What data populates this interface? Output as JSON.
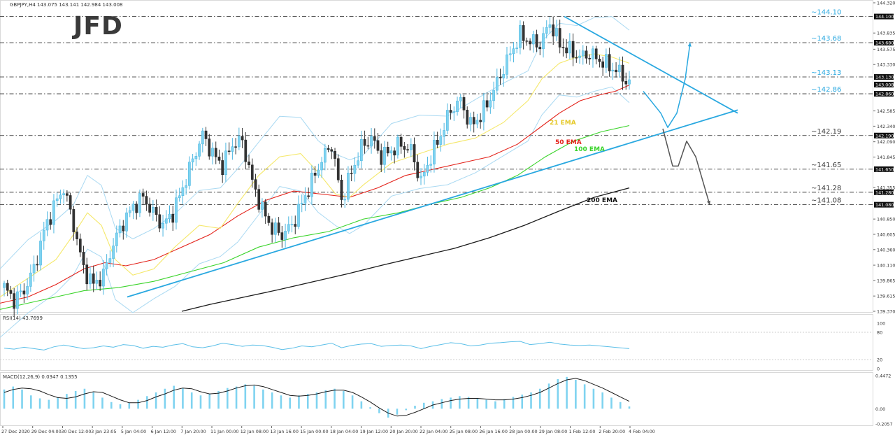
{
  "header": {
    "symbol_line": "GBPJPY,H4  143.075 143.141 142.984 143.008",
    "logo": "JFD"
  },
  "colors": {
    "bullish": "#7fd3f0",
    "bearish": "#333333",
    "bollinger": "#a9d9f2",
    "ema21": "#f5e86a",
    "ema50": "#e32119",
    "ema100": "#3bd42b",
    "ema200": "#1a1a1a",
    "trendline": "#29a8e0",
    "scenario_up": "#29a8e0",
    "scenario_down": "#555555",
    "rsi_line": "#5bbfe8",
    "macd_hist": "#7fd3f0",
    "macd_signal": "#1a1a1a"
  },
  "price_axis": {
    "ticks": [
      "144.320",
      "144.100",
      "143.835",
      "143.680",
      "143.575",
      "143.330",
      "143.130",
      "143.008",
      "142.860",
      "142.585",
      "142.340",
      "142.190",
      "142.090",
      "141.845",
      "141.650",
      "141.355",
      "141.280",
      "141.080",
      "140.850",
      "140.605",
      "140.360",
      "140.110",
      "139.865",
      "139.615",
      "139.370"
    ],
    "highlighted": [
      "144.100",
      "143.680",
      "143.130",
      "143.008",
      "142.860",
      "142.190",
      "141.650",
      "141.280",
      "141.080"
    ]
  },
  "time_axis": {
    "ticks": [
      "27 Dec 2020",
      "29 Dec 04:00",
      "30 Dec 12:00",
      "3 Jan 23:05",
      "5 Jan 04:00",
      "6 Jan 12:00",
      "7 Jan 20:00",
      "11 Jan 00:00",
      "12 Jan 08:00",
      "13 Jan 16:00",
      "15 Jan 00:00",
      "18 Jan 04:00",
      "19 Jan 12:00",
      "20 Jan 20:00",
      "22 Jan 04:00",
      "25 Jan 08:00",
      "26 Jan 16:00",
      "28 Jan 00:00",
      "29 Jan 08:00",
      "1 Feb 12:00",
      "2 Feb 20:00",
      "4 Feb 04:00"
    ]
  },
  "levels": [
    {
      "label": "~144.10",
      "value": 144.1
    },
    {
      "label": "~143.68",
      "value": 143.68
    },
    {
      "label": "~143.13",
      "value": 143.13
    },
    {
      "label": "~142.86",
      "value": 142.86
    },
    {
      "label": "~142.19",
      "value": 142.19
    },
    {
      "label": "~141.65",
      "value": 141.65
    },
    {
      "label": "~141.28",
      "value": 141.28
    },
    {
      "label": "~141.08",
      "value": 141.08
    }
  ],
  "ema_labels": [
    {
      "label": "21 EMA",
      "key": "ema21"
    },
    {
      "label": "50 EMA",
      "key": "ema50"
    },
    {
      "label": "100 EMA",
      "key": "ema100"
    },
    {
      "label": "200 EMA",
      "key": "ema200"
    }
  ],
  "rsi": {
    "label": "RSI(14) 43.7699",
    "ticks": [
      "100",
      "80",
      "20",
      "0"
    ]
  },
  "macd": {
    "label": "MACD(12,26,9) 0.0347 0.1355",
    "ticks": [
      "0.4472",
      "0.00",
      "-0.2057"
    ]
  },
  "chart_data": {
    "type": "candlestick",
    "symbol": "GBPJPY",
    "timeframe": "H4",
    "ylim": [
      139.37,
      144.32
    ],
    "x_labels": [
      "27 Dec 2020",
      "29 Dec 04:00",
      "30 Dec 12:00",
      "3 Jan 23:05",
      "5 Jan 04:00",
      "6 Jan 12:00",
      "7 Jan 20:00",
      "11 Jan 00:00",
      "12 Jan 08:00",
      "13 Jan 16:00",
      "15 Jan 00:00",
      "18 Jan 04:00",
      "19 Jan 12:00",
      "20 Jan 20:00",
      "22 Jan 04:00",
      "25 Jan 08:00",
      "26 Jan 16:00",
      "28 Jan 00:00",
      "29 Jan 08:00",
      "1 Feb 12:00",
      "2 Feb 20:00",
      "4 Feb 04:00"
    ],
    "close_path": [
      139.75,
      139.55,
      139.7,
      140.05,
      140.65,
      141.05,
      141.35,
      140.75,
      140.05,
      139.8,
      139.95,
      140.45,
      140.8,
      141.05,
      141.2,
      140.95,
      140.75,
      140.95,
      141.35,
      141.8,
      142.2,
      141.9,
      141.7,
      142.05,
      142.1,
      141.45,
      141.0,
      140.7,
      140.6,
      140.75,
      141.1,
      141.45,
      141.8,
      142.05,
      141.15,
      141.6,
      142.0,
      142.15,
      141.85,
      141.95,
      142.05,
      141.95,
      141.45,
      141.85,
      142.2,
      142.6,
      142.75,
      142.35,
      142.5,
      142.8,
      143.15,
      143.5,
      143.8,
      143.7,
      143.65,
      144.0,
      143.65,
      143.55,
      143.45,
      143.5,
      143.4,
      143.3,
      143.2,
      143.01
    ],
    "ema21": [
      [
        0,
        139.6
      ],
      [
        40,
        139.9
      ],
      [
        80,
        140.2
      ],
      [
        105,
        140.6
      ],
      [
        125,
        140.95
      ],
      [
        145,
        140.75
      ],
      [
        165,
        140.2
      ],
      [
        190,
        139.95
      ],
      [
        220,
        140.05
      ],
      [
        250,
        140.4
      ],
      [
        285,
        140.75
      ],
      [
        315,
        140.7
      ],
      [
        340,
        141.1
      ],
      [
        370,
        141.55
      ],
      [
        400,
        141.85
      ],
      [
        430,
        141.9
      ],
      [
        455,
        141.6
      ],
      [
        480,
        141.25
      ],
      [
        500,
        141.2
      ],
      [
        520,
        141.4
      ],
      [
        560,
        141.75
      ],
      [
        600,
        141.9
      ],
      [
        640,
        142.05
      ],
      [
        680,
        142.15
      ],
      [
        720,
        142.4
      ],
      [
        755,
        142.75
      ],
      [
        775,
        143.1
      ],
      [
        800,
        143.35
      ],
      [
        825,
        143.45
      ],
      [
        850,
        143.5
      ],
      [
        875,
        143.45
      ],
      [
        900,
        143.35
      ]
    ],
    "ema50": [
      [
        0,
        139.5
      ],
      [
        40,
        139.6
      ],
      [
        80,
        139.8
      ],
      [
        120,
        140.05
      ],
      [
        150,
        140.15
      ],
      [
        180,
        140.1
      ],
      [
        220,
        140.2
      ],
      [
        260,
        140.4
      ],
      [
        300,
        140.6
      ],
      [
        340,
        140.9
      ],
      [
        380,
        141.15
      ],
      [
        420,
        141.3
      ],
      [
        460,
        141.25
      ],
      [
        500,
        141.2
      ],
      [
        540,
        141.35
      ],
      [
        580,
        141.55
      ],
      [
        620,
        141.65
      ],
      [
        660,
        141.75
      ],
      [
        700,
        141.85
      ],
      [
        740,
        142.05
      ],
      [
        770,
        142.3
      ],
      [
        800,
        142.55
      ],
      [
        830,
        142.75
      ],
      [
        860,
        142.85
      ],
      [
        880,
        142.9
      ],
      [
        900,
        143.0
      ]
    ],
    "ema100": [
      [
        0,
        139.4
      ],
      [
        40,
        139.5
      ],
      [
        80,
        139.6
      ],
      [
        120,
        139.7
      ],
      [
        170,
        139.75
      ],
      [
        220,
        139.85
      ],
      [
        270,
        140.0
      ],
      [
        320,
        140.15
      ],
      [
        370,
        140.4
      ],
      [
        420,
        140.55
      ],
      [
        470,
        140.65
      ],
      [
        520,
        140.85
      ],
      [
        570,
        140.95
      ],
      [
        620,
        141.1
      ],
      [
        660,
        141.2
      ],
      [
        700,
        141.35
      ],
      [
        740,
        141.55
      ],
      [
        780,
        141.85
      ],
      [
        820,
        142.1
      ],
      [
        860,
        142.25
      ],
      [
        900,
        142.35
      ]
    ],
    "ema200": [
      [
        260,
        139.37
      ],
      [
        300,
        139.48
      ],
      [
        350,
        139.6
      ],
      [
        400,
        139.72
      ],
      [
        450,
        139.85
      ],
      [
        500,
        139.98
      ],
      [
        550,
        140.12
      ],
      [
        600,
        140.25
      ],
      [
        650,
        140.38
      ],
      [
        700,
        140.55
      ],
      [
        750,
        140.75
      ],
      [
        800,
        140.98
      ],
      [
        850,
        141.2
      ],
      [
        900,
        141.35
      ]
    ],
    "trendline_down": [
      [
        807,
        144.1
      ],
      [
        1055,
        142.55
      ]
    ],
    "trendline_up": [
      [
        182,
        139.6
      ],
      [
        1055,
        142.6
      ]
    ],
    "scenario_up": [
      [
        920,
        142.9
      ],
      [
        945,
        142.55
      ],
      [
        955,
        142.32
      ],
      [
        968,
        142.55
      ],
      [
        980,
        143.1
      ],
      [
        987,
        143.68
      ]
    ],
    "scenario_down": [
      [
        948,
        142.3
      ],
      [
        962,
        141.7
      ],
      [
        970,
        141.7
      ],
      [
        982,
        142.1
      ],
      [
        995,
        141.85
      ],
      [
        1015,
        141.08
      ]
    ],
    "rsi_range": [
      0,
      100
    ],
    "rsi_levels": [
      80,
      20
    ],
    "rsi": [
      45,
      43,
      47,
      44,
      41,
      48,
      52,
      48,
      44,
      46,
      50,
      47,
      53,
      51,
      45,
      49,
      47,
      52,
      55,
      48,
      46,
      50,
      56,
      53,
      49,
      52,
      51,
      47,
      42,
      45,
      50,
      48,
      52,
      56,
      46,
      51,
      54,
      55,
      49,
      51,
      52,
      50,
      44,
      49,
      53,
      57,
      55,
      50,
      52,
      56,
      57,
      59,
      60,
      53,
      55,
      58,
      54,
      52,
      51,
      52,
      50,
      48,
      46,
      44
    ],
    "macd_range": [
      -0.2057,
      0.4472
    ],
    "macd_hist": [
      0.26,
      0.3,
      0.26,
      0.18,
      0.14,
      0.12,
      0.15,
      0.2,
      0.24,
      0.27,
      0.22,
      0.15,
      0.09,
      0.06,
      0.08,
      0.12,
      0.17,
      0.22,
      0.27,
      0.31,
      0.28,
      0.22,
      0.18,
      0.2,
      0.24,
      0.28,
      0.3,
      0.33,
      0.31,
      0.26,
      0.22,
      0.18,
      0.15,
      0.18,
      0.2,
      0.22,
      0.25,
      0.27,
      0.24,
      0.18,
      0.1,
      0.02,
      -0.06,
      -0.12,
      -0.08,
      -0.02,
      0.04,
      0.08,
      0.1,
      0.13,
      0.15,
      0.17,
      0.16,
      0.14,
      0.12,
      0.1,
      0.13,
      0.16,
      0.19,
      0.22,
      0.27,
      0.34,
      0.4,
      0.43,
      0.39,
      0.33,
      0.27,
      0.22,
      0.15,
      0.09,
      0.03
    ],
    "macd_signal": [
      0.22,
      0.26,
      0.28,
      0.27,
      0.24,
      0.19,
      0.15,
      0.14,
      0.16,
      0.2,
      0.23,
      0.22,
      0.17,
      0.12,
      0.08,
      0.08,
      0.11,
      0.16,
      0.2,
      0.25,
      0.28,
      0.27,
      0.23,
      0.2,
      0.21,
      0.24,
      0.28,
      0.31,
      0.32,
      0.3,
      0.26,
      0.22,
      0.18,
      0.17,
      0.18,
      0.2,
      0.23,
      0.25,
      0.25,
      0.22,
      0.16,
      0.09,
      0.01,
      -0.06,
      -0.1,
      -0.09,
      -0.05,
      0.0,
      0.05,
      0.08,
      0.11,
      0.13,
      0.14,
      0.14,
      0.13,
      0.12,
      0.12,
      0.13,
      0.15,
      0.18,
      0.22,
      0.28,
      0.34,
      0.39,
      0.41,
      0.38,
      0.33,
      0.28,
      0.22,
      0.16,
      0.1
    ]
  }
}
